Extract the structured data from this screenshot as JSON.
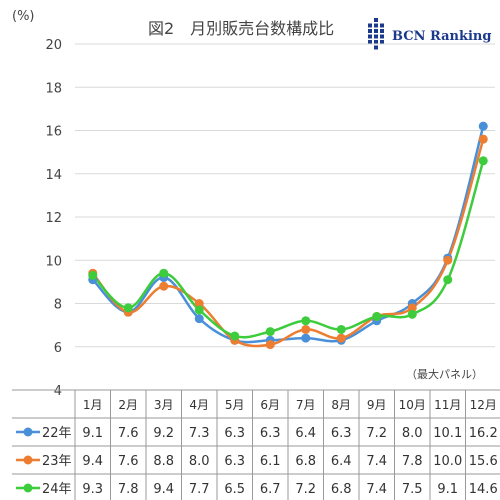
{
  "chart_data": {
    "type": "line",
    "title": "図2　月別販売台数構成比",
    "ylabel": "(%)",
    "ylim": [
      4,
      20
    ],
    "yticks": [
      "4",
      "6",
      "8",
      "10",
      "12",
      "14",
      "16",
      "18",
      "20"
    ],
    "categories": [
      "1月",
      "2月",
      "3月",
      "4月",
      "5月",
      "6月",
      "7月",
      "8月",
      "9月",
      "10月",
      "11月",
      "12月"
    ],
    "note": "（最大パネル）",
    "grid": "horizontal",
    "legend": "table-below",
    "series": [
      {
        "name": "22年",
        "color": "#4a90d9",
        "values": [
          9.1,
          7.6,
          9.2,
          7.3,
          6.3,
          6.3,
          6.4,
          6.3,
          7.2,
          8.0,
          10.1,
          16.2
        ],
        "labels": [
          "9.1",
          "7.6",
          "9.2",
          "7.3",
          "6.3",
          "6.3",
          "6.4",
          "6.3",
          "7.2",
          "8.0",
          "10.1",
          "16.2"
        ]
      },
      {
        "name": "23年",
        "color": "#ed7d31",
        "values": [
          9.4,
          7.6,
          8.8,
          8.0,
          6.3,
          6.1,
          6.8,
          6.4,
          7.4,
          7.8,
          10.0,
          15.6
        ],
        "labels": [
          "9.4",
          "7.6",
          "8.8",
          "8.0",
          "6.3",
          "6.1",
          "6.8",
          "6.4",
          "7.4",
          "7.8",
          "10.0",
          "15.6"
        ]
      },
      {
        "name": "24年",
        "color": "#3ccc3c",
        "values": [
          9.3,
          7.8,
          9.4,
          7.7,
          6.5,
          6.7,
          7.2,
          6.8,
          7.4,
          7.5,
          9.1,
          14.6
        ],
        "labels": [
          "9.3",
          "7.8",
          "9.4",
          "7.7",
          "6.5",
          "6.7",
          "7.2",
          "6.8",
          "7.4",
          "7.5",
          "9.1",
          "14.6"
        ]
      }
    ]
  },
  "logo": {
    "text": "BCN Ranking",
    "color": "#1c3a8c",
    "icon": "bcn-grid-logo"
  }
}
